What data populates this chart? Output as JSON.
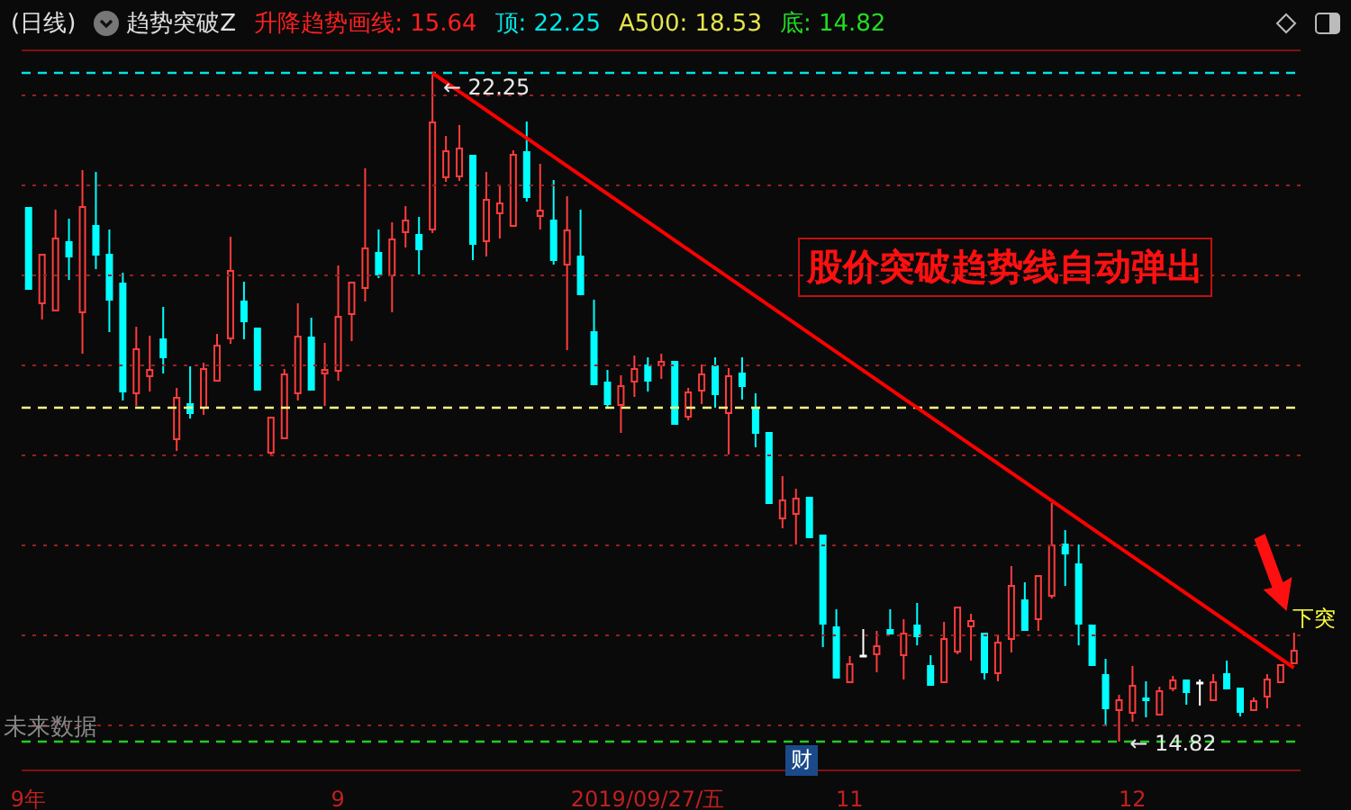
{
  "chart_data": {
    "type": "candlestick",
    "categories": [
      "9年",
      null,
      null,
      null,
      null,
      null,
      null,
      null,
      null,
      null,
      null,
      null,
      null,
      null,
      null,
      null,
      null,
      null,
      null,
      null,
      null,
      null,
      null,
      "9",
      null,
      null,
      null,
      null,
      null,
      null,
      null,
      null,
      null,
      null,
      null,
      null,
      null,
      null,
      null,
      null,
      null,
      null,
      null,
      null,
      null,
      null,
      "2019/09/27/五",
      null,
      null,
      null,
      null,
      null,
      null,
      null,
      null,
      null,
      null,
      null,
      null,
      null,
      null,
      "11",
      null,
      null,
      null,
      null,
      null,
      null,
      null,
      null,
      null,
      null,
      null,
      null,
      null,
      null,
      null,
      null,
      null,
      null,
      null,
      null,
      "12",
      null,
      null,
      null,
      null,
      null,
      null,
      null,
      null,
      null,
      null,
      null,
      null
    ],
    "ohlc": [
      [
        20.75,
        20.75,
        19.83,
        19.85
      ],
      [
        19.69,
        20.25,
        19.51,
        20.23
      ],
      [
        19.61,
        20.73,
        19.61,
        20.41
      ],
      [
        20.37,
        20.63,
        19.95,
        20.21
      ],
      [
        19.59,
        21.17,
        19.13,
        20.76
      ],
      [
        20.55,
        21.15,
        20.07,
        20.23
      ],
      [
        20.23,
        20.51,
        19.37,
        19.73
      ],
      [
        19.91,
        20.03,
        18.61,
        18.71
      ],
      [
        18.69,
        19.43,
        18.55,
        19.18
      ],
      [
        18.88,
        19.33,
        18.71,
        18.95
      ],
      [
        19.29,
        19.65,
        18.91,
        19.09
      ],
      [
        18.18,
        18.75,
        18.05,
        18.64
      ],
      [
        18.57,
        18.99,
        18.41,
        18.47
      ],
      [
        18.53,
        19.03,
        18.45,
        18.96
      ],
      [
        18.83,
        19.35,
        18.83,
        19.22
      ],
      [
        19.3,
        20.43,
        19.24,
        20.05
      ],
      [
        19.71,
        19.93,
        19.29,
        19.49
      ],
      [
        19.41,
        19.41,
        18.71,
        18.73
      ],
      [
        18.03,
        18.42,
        17.99,
        18.42
      ],
      [
        18.19,
        18.96,
        18.19,
        18.9
      ],
      [
        18.69,
        19.69,
        18.61,
        19.32
      ],
      [
        19.31,
        19.53,
        18.71,
        18.73
      ],
      [
        18.91,
        19.25,
        18.55,
        18.95
      ],
      [
        18.94,
        20.11,
        18.83,
        19.54
      ],
      [
        19.57,
        19.92,
        19.27,
        19.92
      ],
      [
        19.86,
        21.19,
        19.71,
        20.3
      ],
      [
        20.25,
        20.51,
        19.97,
        20.01
      ],
      [
        20.0,
        20.59,
        19.59,
        20.4
      ],
      [
        20.48,
        20.77,
        20.31,
        20.61
      ],
      [
        20.45,
        20.65,
        20.01,
        20.29
      ],
      [
        20.51,
        22.25,
        20.47,
        21.7
      ],
      [
        21.09,
        21.55,
        21.04,
        21.38
      ],
      [
        21.1,
        21.67,
        21.05,
        21.41
      ],
      [
        21.33,
        21.33,
        20.17,
        20.35
      ],
      [
        20.38,
        21.15,
        20.21,
        20.84
      ],
      [
        20.69,
        20.99,
        20.41,
        20.8
      ],
      [
        20.55,
        21.39,
        20.55,
        21.34
      ],
      [
        21.37,
        21.71,
        20.82,
        20.87
      ],
      [
        20.66,
        21.24,
        20.51,
        20.72
      ],
      [
        20.61,
        21.06,
        20.12,
        20.17
      ],
      [
        20.12,
        20.88,
        19.17,
        20.5
      ],
      [
        20.21,
        20.73,
        19.77,
        19.79
      ],
      [
        19.37,
        19.73,
        18.79,
        18.79
      ],
      [
        18.81,
        18.95,
        18.52,
        18.57
      ],
      [
        18.56,
        18.89,
        18.25,
        18.77
      ],
      [
        18.82,
        19.11,
        18.65,
        18.96
      ],
      [
        19.0,
        19.09,
        18.71,
        18.83
      ],
      [
        19.0,
        19.13,
        18.85,
        19.04
      ],
      [
        19.04,
        19.04,
        18.35,
        18.35
      ],
      [
        18.43,
        18.75,
        18.39,
        18.7
      ],
      [
        18.72,
        19.01,
        18.57,
        18.9
      ],
      [
        18.99,
        19.09,
        18.53,
        18.68
      ],
      [
        18.47,
        18.97,
        18.01,
        18.88
      ],
      [
        18.91,
        19.09,
        18.62,
        18.77
      ],
      [
        18.51,
        18.69,
        18.09,
        18.25
      ],
      [
        18.25,
        18.27,
        17.45,
        17.47
      ],
      [
        17.3,
        17.77,
        17.19,
        17.5
      ],
      [
        17.35,
        17.63,
        17.01,
        17.52
      ],
      [
        17.53,
        17.53,
        17.07,
        17.09
      ],
      [
        17.11,
        17.11,
        15.87,
        16.13
      ],
      [
        16.09,
        16.29,
        15.51,
        15.53
      ],
      [
        15.48,
        15.77,
        15.48,
        15.68
      ],
      [
        15.77,
        16.07,
        15.74,
        15.76
      ],
      [
        15.79,
        16.05,
        15.59,
        15.88
      ],
      [
        16.06,
        16.29,
        15.99,
        16.02
      ],
      [
        15.78,
        16.18,
        15.51,
        16.02
      ],
      [
        16.11,
        16.36,
        15.89,
        15.99
      ],
      [
        15.66,
        15.78,
        15.45,
        15.45
      ],
      [
        15.48,
        16.15,
        15.48,
        15.96
      ],
      [
        15.82,
        16.33,
        15.79,
        16.31
      ],
      [
        16.1,
        16.24,
        15.72,
        16.16
      ],
      [
        16.02,
        16.02,
        15.51,
        15.59
      ],
      [
        15.58,
        16.01,
        15.49,
        15.92
      ],
      [
        15.96,
        16.77,
        15.81,
        16.55
      ],
      [
        16.39,
        16.59,
        16.04,
        16.06
      ],
      [
        16.18,
        16.66,
        16.05,
        16.66
      ],
      [
        16.44,
        17.47,
        16.41,
        17.0
      ],
      [
        17.01,
        17.17,
        16.55,
        16.91
      ],
      [
        16.79,
        17.01,
        15.89,
        16.13
      ],
      [
        16.11,
        16.11,
        15.67,
        15.67
      ],
      [
        15.56,
        15.74,
        14.99,
        15.19
      ],
      [
        15.17,
        15.34,
        14.82,
        15.28
      ],
      [
        15.14,
        15.66,
        15.04,
        15.44
      ],
      [
        15.3,
        15.49,
        15.09,
        15.28
      ],
      [
        15.12,
        15.43,
        15.12,
        15.38
      ],
      [
        15.41,
        15.55,
        15.38,
        15.5
      ],
      [
        15.5,
        15.5,
        15.23,
        15.37
      ],
      [
        15.47,
        15.51,
        15.22,
        15.47
      ],
      [
        15.28,
        15.57,
        15.28,
        15.48
      ],
      [
        15.57,
        15.72,
        15.41,
        15.41
      ],
      [
        15.41,
        15.43,
        15.1,
        15.15
      ],
      [
        15.17,
        15.31,
        15.17,
        15.27
      ],
      [
        15.32,
        15.57,
        15.19,
        15.51
      ],
      [
        15.48,
        15.67,
        15.48,
        15.67
      ],
      [
        15.69,
        16.03,
        15.69,
        15.83
      ]
    ],
    "colors": [
      "#00ffff",
      "#ff3c3c",
      "#ff3c3c",
      "#00ffff",
      "#ff3c3c",
      "#00ffff",
      "#00ffff",
      "#00ffff",
      "#ff3c3c",
      "#ff3c3c",
      "#00ffff",
      "#ff3c3c",
      "#00ffff",
      "#ff3c3c",
      "#ff3c3c",
      "#ff3c3c",
      "#00ffff",
      "#00ffff",
      "#ff3c3c",
      "#ff3c3c",
      "#ff3c3c",
      "#00ffff",
      "#ff3c3c",
      "#ff3c3c",
      "#ff3c3c",
      "#ff3c3c",
      "#00ffff",
      "#ff3c3c",
      "#ff3c3c",
      "#00ffff",
      "#ff3c3c",
      "#ff3c3c",
      "#ff3c3c",
      "#00ffff",
      "#ff3c3c",
      "#ff3c3c",
      "#ff3c3c",
      "#00ffff",
      "#ff3c3c",
      "#00ffff",
      "#ff3c3c",
      "#00ffff",
      "#00ffff",
      "#00ffff",
      "#ff3c3c",
      "#ff3c3c",
      "#00ffff",
      "#ff3c3c",
      "#00ffff",
      "#ff3c3c",
      "#ff3c3c",
      "#00ffff",
      "#ff3c3c",
      "#00ffff",
      "#00ffff",
      "#00ffff",
      "#ff3c3c",
      "#ff3c3c",
      "#00ffff",
      "#00ffff",
      "#00ffff",
      "#ff3c3c",
      "#ffffff",
      "#ff3c3c",
      "#00ffff",
      "#ff3c3c",
      "#00ffff",
      "#00ffff",
      "#ff3c3c",
      "#ff3c3c",
      "#ff3c3c",
      "#00ffff",
      "#ff3c3c",
      "#ff3c3c",
      "#00ffff",
      "#ff3c3c",
      "#ff3c3c",
      "#00ffff",
      "#00ffff",
      "#00ffff",
      "#00ffff",
      "#ff3c3c",
      "#ff3c3c",
      "#00ffff",
      "#ff3c3c",
      "#ff3c3c",
      "#00ffff",
      "#ffffff",
      "#ff3c3c",
      "#00ffff",
      "#00ffff",
      "#ff3c3c",
      "#ff3c3c",
      "#ff3c3c",
      "#ff3c3c"
    ],
    "series": [
      {
        "type": "line",
        "color": "#ff0000",
        "values": [
          null,
          null,
          null,
          null,
          null,
          null,
          null,
          null,
          null,
          null,
          null,
          null,
          null,
          null,
          null,
          null,
          null,
          null,
          null,
          null,
          null,
          null,
          null,
          null,
          null,
          null,
          null,
          null,
          null,
          null,
          22.25,
          null,
          null,
          null,
          null,
          null,
          null,
          null,
          null,
          null,
          null,
          null,
          null,
          null,
          null,
          null,
          null,
          null,
          null,
          null,
          null,
          null,
          null,
          null,
          null,
          null,
          null,
          null,
          null,
          null,
          null,
          null,
          null,
          null,
          null,
          null,
          null,
          null,
          null,
          null,
          null,
          null,
          null,
          null,
          null,
          null,
          null,
          null,
          null,
          null,
          null,
          null,
          null,
          null,
          null,
          null,
          null,
          null,
          null,
          null,
          null,
          null,
          null,
          null,
          15.64
        ]
      }
    ],
    "ylim": [
      14.5,
      22.5
    ],
    "yticks": [
      {
        "value": 15,
        "label": null
      },
      {
        "value": 16,
        "label": null
      },
      {
        "value": 17,
        "label": null
      },
      {
        "value": 18,
        "label": null
      },
      {
        "value": 19,
        "label": null
      },
      {
        "value": 20,
        "label": null
      },
      {
        "value": 21,
        "label": null
      },
      {
        "value": 22,
        "label": null
      }
    ],
    "tick_labels": "x",
    "grid": "y",
    "ref_lines": [
      {
        "axis": "y",
        "value": 22.25,
        "color": "#00e5e5",
        "line_style": "dashed"
      },
      {
        "axis": "y",
        "value": 18.53,
        "color": "#ffff80",
        "line_style": "dashed"
      },
      {
        "axis": "y",
        "value": 14.82,
        "color": "#22cc22",
        "line_style": "dashed"
      }
    ],
    "annotations": [
      "(日线)",
      "趋势突破Z",
      "升降趋势画线: 15.64",
      "顶: 22.25",
      "A500: 18.53",
      "底: 14.82",
      "股价突破趋势线自动弹出",
      "未来数据",
      "财",
      "下突",
      {
        "text": "← 22.25",
        "y": 22.25
      },
      {
        "text": "← 14.82",
        "y": 14.82
      }
    ]
  }
}
